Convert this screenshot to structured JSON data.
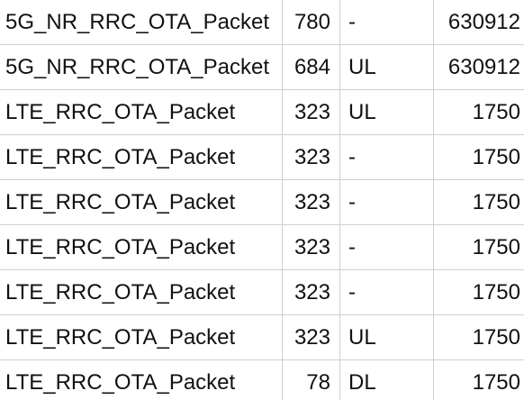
{
  "table": {
    "rows": [
      {
        "type": "5G_NR_RRC_OTA_Packet",
        "length": "780",
        "direction": "-",
        "id": "630912"
      },
      {
        "type": "5G_NR_RRC_OTA_Packet",
        "length": "684",
        "direction": "UL",
        "id": "630912"
      },
      {
        "type": "LTE_RRC_OTA_Packet",
        "length": "323",
        "direction": "UL",
        "id": "1750"
      },
      {
        "type": "LTE_RRC_OTA_Packet",
        "length": "323",
        "direction": "-",
        "id": "1750"
      },
      {
        "type": "LTE_RRC_OTA_Packet",
        "length": "323",
        "direction": "-",
        "id": "1750"
      },
      {
        "type": "LTE_RRC_OTA_Packet",
        "length": "323",
        "direction": "-",
        "id": "1750"
      },
      {
        "type": "LTE_RRC_OTA_Packet",
        "length": "323",
        "direction": "-",
        "id": "1750"
      },
      {
        "type": "LTE_RRC_OTA_Packet",
        "length": "323",
        "direction": "UL",
        "id": "1750"
      },
      {
        "type": "LTE_RRC_OTA_Packet",
        "length": "78",
        "direction": "DL",
        "id": "1750"
      }
    ]
  },
  "colors": {
    "text": "#111111",
    "grid": "#cfcfcf",
    "background": "#ffffff"
  }
}
